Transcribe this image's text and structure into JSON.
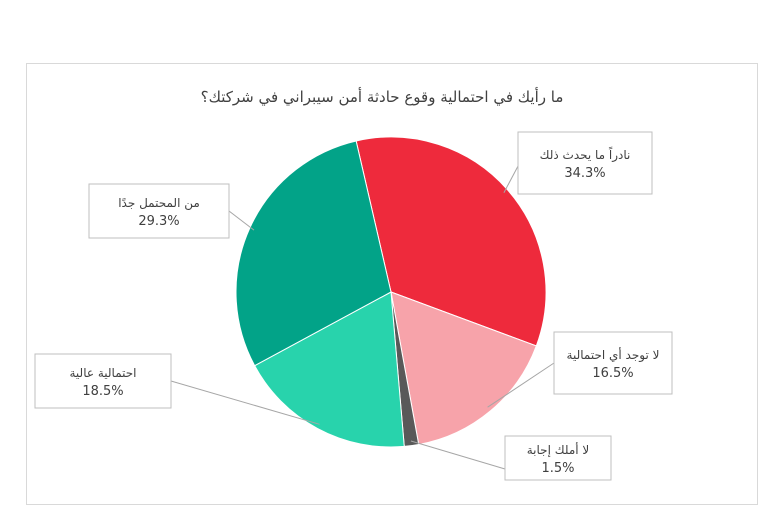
{
  "chart_data": {
    "type": "pie",
    "title": "ما رأيك في احتمالية وقوع حادثة أمن سيبراني في شركتك؟",
    "slices": [
      {
        "label": "نادراً ما يحدث ذلك",
        "value": 34.3,
        "value_label": "34.3%",
        "color": "#ee2a3c"
      },
      {
        "label": "لا توجد أي احتمالية",
        "value": 16.5,
        "value_label": "16.5%",
        "color": "#f7a3aa"
      },
      {
        "label": "لا أملك إجابة",
        "value": 1.5,
        "value_label": "1.5%",
        "color": "#595959"
      },
      {
        "label": "احتمالية عالية",
        "value": 18.5,
        "value_label": "18.5%",
        "color": "#28d3ac"
      },
      {
        "label": "من المحتمل جدًا",
        "value": 29.3,
        "value_label": "29.3%",
        "color": "#02a388"
      }
    ],
    "legend": "none",
    "labels": "callouts"
  }
}
